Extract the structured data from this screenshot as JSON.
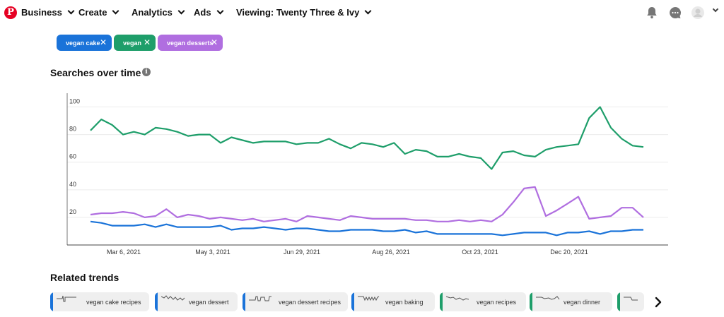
{
  "nav": {
    "logo_letter": "P",
    "business": "Business",
    "create": "Create",
    "analytics": "Analytics",
    "ads": "Ads",
    "viewing": "Viewing: Twenty Three & Ivy"
  },
  "filters": [
    {
      "label": "vegan cake",
      "color": "#1a73d9"
    },
    {
      "label": "vegan",
      "color": "#1e9e6a"
    },
    {
      "label": "vegan desserts",
      "color": "#b06ee0"
    }
  ],
  "searches": {
    "title": "Searches over time",
    "info_symbol": "i"
  },
  "chart_data": {
    "type": "line",
    "title": "Searches over time",
    "ylim": [
      0,
      110
    ],
    "yticks": [
      20,
      40,
      60,
      80,
      100
    ],
    "xticks": [
      "Mar 6, 2021",
      "May 3, 2021",
      "Jun 29, 2021",
      "Aug 26, 2021",
      "Oct 23, 2021",
      "Dec 20, 2021"
    ],
    "grid": true,
    "series": [
      {
        "name": "vegan",
        "color": "#1e9e6a",
        "values": [
          83,
          91,
          87,
          80,
          82,
          80,
          85,
          84,
          82,
          79,
          80,
          80,
          74,
          78,
          76,
          74,
          75,
          75,
          75,
          73,
          74,
          74,
          77,
          73,
          70,
          74,
          73,
          71,
          74,
          66,
          69,
          68,
          64,
          64,
          66,
          64,
          63,
          55,
          67,
          68,
          65,
          64,
          69,
          71,
          72,
          73,
          92,
          100,
          85,
          77,
          72,
          71
        ]
      },
      {
        "name": "vegan desserts",
        "color": "#b06ee0",
        "values": [
          22,
          23,
          23,
          24,
          23,
          20,
          21,
          26,
          20,
          22,
          21,
          19,
          20,
          19,
          18,
          19,
          17,
          18,
          19,
          17,
          21,
          20,
          19,
          18,
          21,
          20,
          19,
          19,
          19,
          19,
          18,
          18,
          17,
          17,
          18,
          17,
          18,
          17,
          22,
          31,
          41,
          42,
          21,
          25,
          30,
          35,
          19,
          20,
          21,
          27,
          27,
          20
        ]
      },
      {
        "name": "vegan cake",
        "color": "#1a73d9",
        "values": [
          17,
          16,
          14,
          14,
          14,
          15,
          13,
          15,
          13,
          13,
          13,
          13,
          14,
          11,
          12,
          12,
          13,
          12,
          11,
          12,
          12,
          11,
          10,
          10,
          11,
          11,
          11,
          10,
          10,
          11,
          9,
          10,
          8,
          8,
          8,
          8,
          8,
          8,
          7,
          8,
          9,
          9,
          9,
          7,
          9,
          9,
          10,
          8,
          10,
          10,
          11,
          11
        ]
      }
    ]
  },
  "related": {
    "title": "Related trends",
    "items": [
      {
        "label": "vegan cake recipes",
        "color": "#1a73d9"
      },
      {
        "label": "vegan dessert",
        "color": "#1a73d9"
      },
      {
        "label": "vegan dessert recipes",
        "color": "#1a73d9"
      },
      {
        "label": "vegan baking",
        "color": "#1a73d9"
      },
      {
        "label": "vegan recipes",
        "color": "#1e9e6a"
      },
      {
        "label": "vegan dinner",
        "color": "#1e9e6a"
      },
      {
        "label": "",
        "color": "#1e9e6a"
      }
    ],
    "next_icon": "chevron-right-icon"
  }
}
